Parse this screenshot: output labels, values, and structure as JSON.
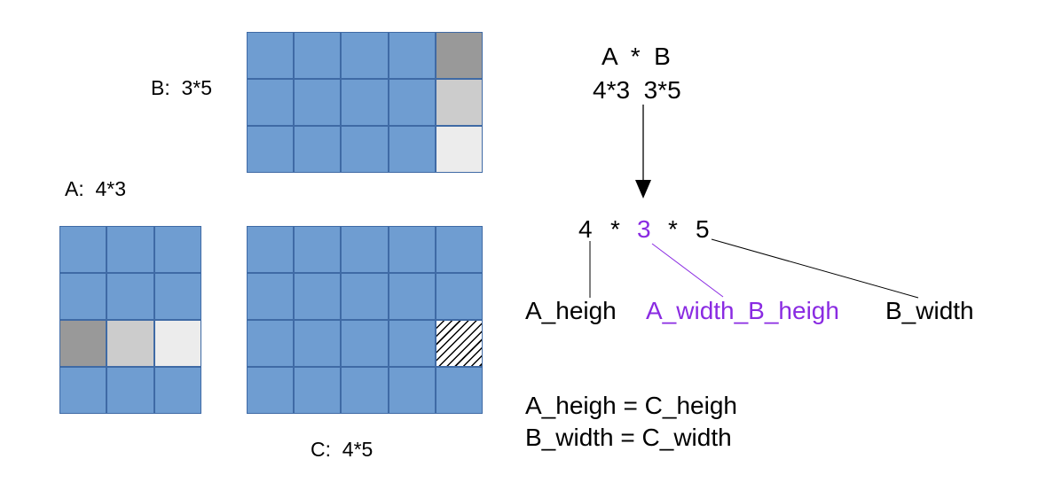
{
  "colors": {
    "cell": "#6f9dd1",
    "dark": "#999999",
    "mid": "#cccccc",
    "light": "#ececec",
    "accent": "#8a2be2"
  },
  "labels": {
    "b_label": "B:  3*5",
    "a_label": "A:  4*3",
    "c_label": "C:  4*5"
  },
  "matrices": {
    "b": {
      "rows": 3,
      "cols": 5,
      "highlight_col": 4,
      "highlight_shades": [
        "dark",
        "mid",
        "light"
      ]
    },
    "a": {
      "rows": 4,
      "cols": 3,
      "highlight_row": 2,
      "highlight_shades": [
        "dark",
        "mid",
        "light"
      ]
    },
    "c": {
      "rows": 4,
      "cols": 5,
      "hatched_cell": [
        2,
        4
      ]
    }
  },
  "equation": {
    "names": "A  *  B",
    "dims": "4*3  3*5",
    "combined": {
      "n1": "4",
      "star1": "*",
      "n2": "3",
      "star2": "*",
      "n3": "5"
    },
    "terms": {
      "a_heigh": "A_heigh",
      "shared": "A_width_B_heigh",
      "b_width": "B_width"
    },
    "rules": [
      "A_heigh = C_heigh",
      "B_width = C_width"
    ]
  }
}
